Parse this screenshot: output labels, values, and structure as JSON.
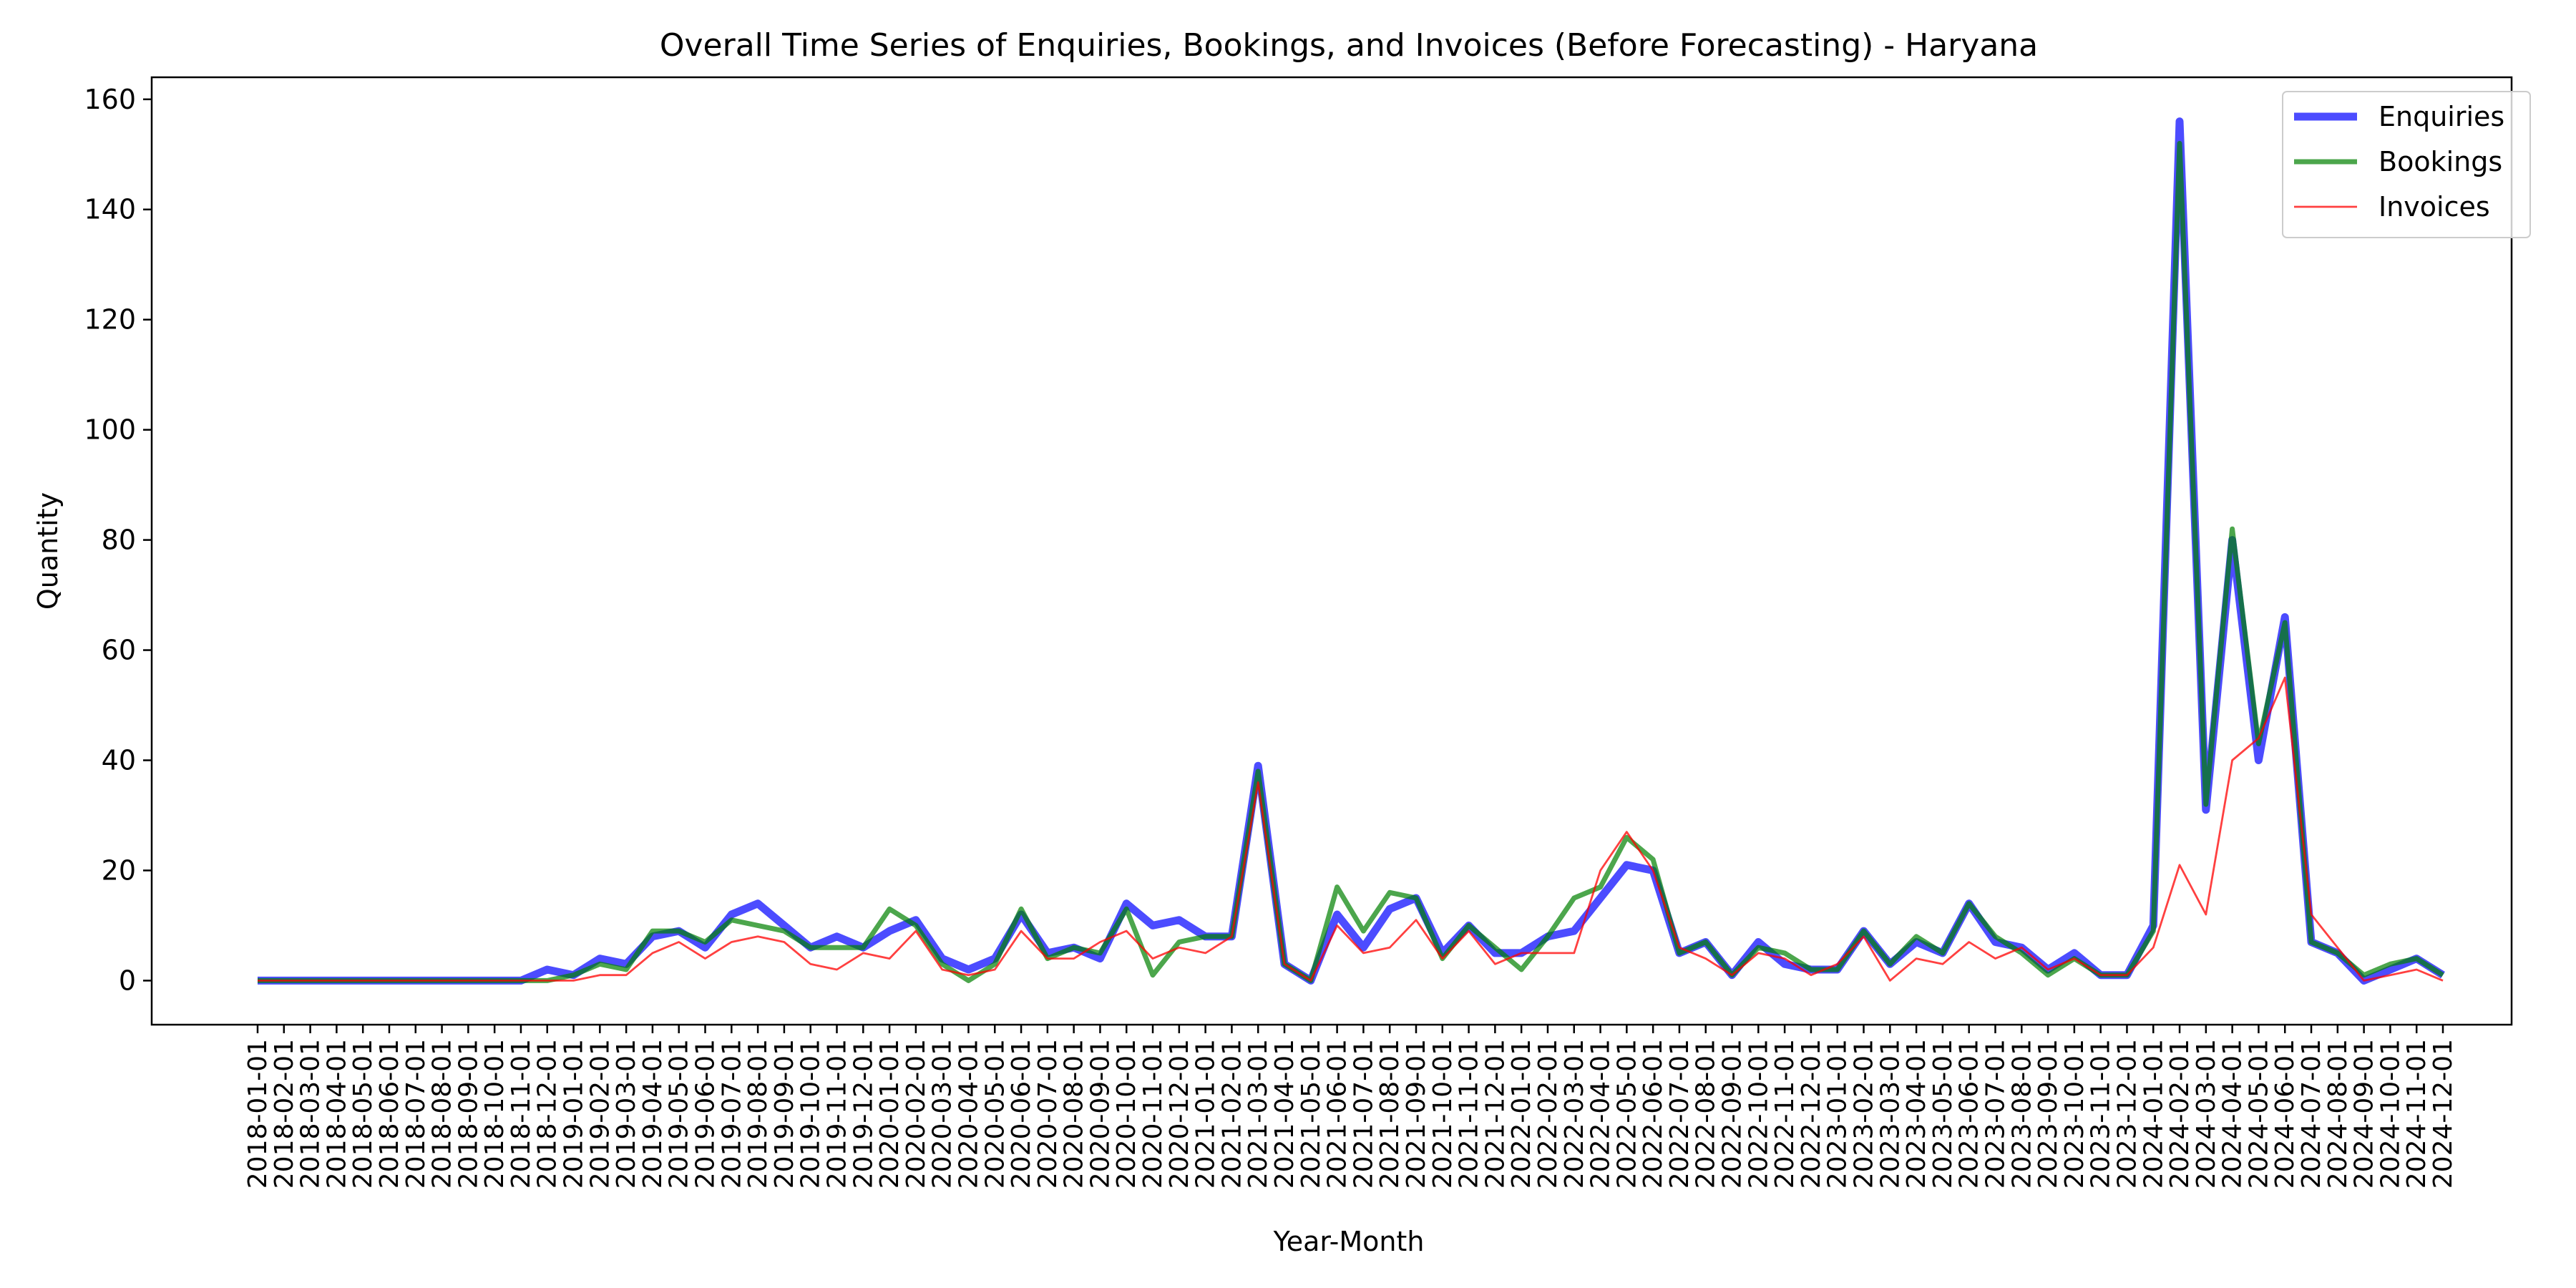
{
  "chart_data": {
    "type": "line",
    "title": "Overall Time Series of Enquiries, Bookings, and Invoices (Before Forecasting) - Haryana",
    "xlabel": "Year-Month",
    "ylabel": "Quantity",
    "ylim": [
      -8,
      164
    ],
    "yticks": [
      0,
      20,
      40,
      60,
      80,
      100,
      120,
      140,
      160
    ],
    "legend_position": "top-right",
    "grid": false,
    "x": [
      "2018-01-01",
      "2018-02-01",
      "2018-03-01",
      "2018-04-01",
      "2018-05-01",
      "2018-06-01",
      "2018-07-01",
      "2018-08-01",
      "2018-09-01",
      "2018-10-01",
      "2018-11-01",
      "2018-12-01",
      "2019-01-01",
      "2019-02-01",
      "2019-03-01",
      "2019-04-01",
      "2019-05-01",
      "2019-06-01",
      "2019-07-01",
      "2019-08-01",
      "2019-09-01",
      "2019-10-01",
      "2019-11-01",
      "2019-12-01",
      "2020-01-01",
      "2020-02-01",
      "2020-03-01",
      "2020-04-01",
      "2020-05-01",
      "2020-06-01",
      "2020-07-01",
      "2020-08-01",
      "2020-09-01",
      "2020-10-01",
      "2020-11-01",
      "2020-12-01",
      "2021-01-01",
      "2021-02-01",
      "2021-03-01",
      "2021-04-01",
      "2021-05-01",
      "2021-06-01",
      "2021-07-01",
      "2021-08-01",
      "2021-09-01",
      "2021-10-01",
      "2021-11-01",
      "2021-12-01",
      "2022-01-01",
      "2022-02-01",
      "2022-03-01",
      "2022-04-01",
      "2022-05-01",
      "2022-06-01",
      "2022-07-01",
      "2022-08-01",
      "2022-09-01",
      "2022-10-01",
      "2022-11-01",
      "2022-12-01",
      "2023-01-01",
      "2023-02-01",
      "2023-03-01",
      "2023-04-01",
      "2023-05-01",
      "2023-06-01",
      "2023-07-01",
      "2023-08-01",
      "2023-09-01",
      "2023-10-01",
      "2023-11-01",
      "2023-12-01",
      "2024-01-01",
      "2024-02-01",
      "2024-03-01",
      "2024-04-01",
      "2024-05-01",
      "2024-06-01",
      "2024-07-01",
      "2024-08-01",
      "2024-09-01",
      "2024-10-01",
      "2024-11-01",
      "2024-12-01"
    ],
    "series": [
      {
        "name": "Enquiries",
        "color": "#0000ff",
        "values": [
          0,
          0,
          0,
          0,
          0,
          0,
          0,
          0,
          0,
          0,
          0,
          2,
          1,
          4,
          3,
          8,
          9,
          6,
          12,
          14,
          10,
          6,
          8,
          6,
          9,
          11,
          4,
          2,
          4,
          12,
          5,
          6,
          4,
          14,
          10,
          11,
          8,
          8,
          39,
          3,
          0,
          12,
          6,
          13,
          15,
          5,
          10,
          5,
          5,
          8,
          9,
          15,
          21,
          20,
          5,
          7,
          1,
          7,
          3,
          2,
          2,
          9,
          3,
          7,
          5,
          14,
          7,
          6,
          2,
          5,
          1,
          1,
          10,
          156,
          31,
          80,
          40,
          66,
          7,
          5,
          0,
          2,
          4,
          1
        ]
      },
      {
        "name": "Bookings",
        "color": "#008000",
        "values": [
          0,
          0,
          0,
          0,
          0,
          0,
          0,
          0,
          0,
          0,
          0,
          0,
          1,
          3,
          2,
          9,
          9,
          7,
          11,
          10,
          9,
          6,
          6,
          6,
          13,
          10,
          3,
          0,
          3,
          13,
          4,
          6,
          5,
          13,
          1,
          7,
          8,
          8,
          38,
          3,
          0,
          17,
          9,
          16,
          15,
          4,
          10,
          6,
          2,
          8,
          15,
          17,
          26,
          22,
          5,
          7,
          1,
          6,
          5,
          2,
          2,
          9,
          3,
          8,
          5,
          14,
          8,
          5,
          1,
          4,
          1,
          1,
          9,
          152,
          32,
          82,
          43,
          65,
          7,
          5,
          1,
          3,
          4,
          1
        ]
      },
      {
        "name": "Invoices",
        "color": "#ff0000",
        "values": [
          0,
          0,
          0,
          0,
          0,
          0,
          0,
          0,
          0,
          0,
          0,
          0,
          0,
          1,
          1,
          5,
          7,
          4,
          7,
          8,
          7,
          3,
          2,
          5,
          4,
          9,
          2,
          1,
          2,
          9,
          4,
          4,
          7,
          9,
          4,
          6,
          5,
          8,
          36,
          3,
          0,
          10,
          5,
          6,
          11,
          4,
          9,
          3,
          5,
          5,
          5,
          20,
          27,
          20,
          6,
          4,
          1,
          5,
          4,
          1,
          3,
          8,
          0,
          4,
          3,
          7,
          4,
          6,
          2,
          4,
          1,
          1,
          6,
          21,
          12,
          40,
          44,
          55,
          12,
          6,
          0,
          1,
          2,
          0
        ]
      }
    ]
  }
}
